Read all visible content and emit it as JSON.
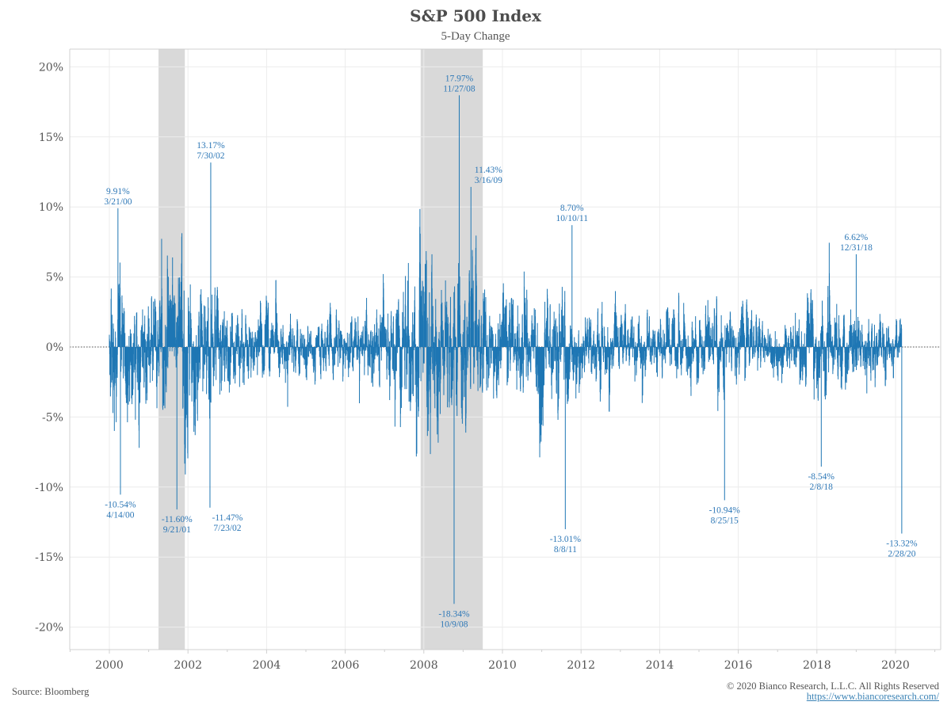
{
  "header": {
    "title": "S&P 500 Index",
    "subtitle": "5-Day Change"
  },
  "footer": {
    "source": "Source: Bloomberg",
    "copyright": "© 2020 Bianco Research, L.L.C. All Rights Reserved",
    "website": "https://www.biancoresearch.com/"
  },
  "colors": {
    "series": "#1f77b4",
    "annotation": "#2e78b7",
    "recession_band": "#d9d9d9",
    "grid": "#ececec",
    "axis": "#d0d0d0",
    "zero_line": "#555555"
  },
  "chart_data": {
    "type": "bar",
    "title": "S&P 500 Index",
    "subtitle": "5-Day Change",
    "xlabel": "",
    "ylabel": "",
    "xlim": [
      1999,
      2021.2
    ],
    "ylim": [
      -21.6,
      21.4
    ],
    "grid": true,
    "legend": "none",
    "x_ticks": [
      2000,
      2002,
      2004,
      2006,
      2008,
      2010,
      2012,
      2014,
      2016,
      2018,
      2020
    ],
    "x_tick_labels": [
      "2000",
      "2002",
      "2004",
      "2006",
      "2008",
      "2010",
      "2012",
      "2014",
      "2016",
      "2018",
      "2020"
    ],
    "y_ticks": [
      20,
      15,
      10,
      5,
      0,
      -5,
      -10,
      -15,
      -20
    ],
    "y_tick_labels": [
      "20%",
      "15%",
      "10%",
      "5%",
      "0%",
      "-5%",
      "-10%",
      "-15%",
      "-20%"
    ],
    "series_range": [
      2000.0,
      2020.16
    ],
    "shaded_regions": [
      {
        "label": "recession",
        "start": 2001.25,
        "end": 2001.92
      },
      {
        "label": "recession",
        "start": 2007.92,
        "end": 2009.5
      }
    ],
    "typical_amplitude_pct": [
      {
        "year": 2000,
        "value": 3.2
      },
      {
        "year": 2001,
        "value": 3.0
      },
      {
        "year": 2002,
        "value": 3.6
      },
      {
        "year": 2003,
        "value": 2.2
      },
      {
        "year": 2004,
        "value": 1.5
      },
      {
        "year": 2005,
        "value": 1.3
      },
      {
        "year": 2006,
        "value": 1.3
      },
      {
        "year": 2007,
        "value": 2.0
      },
      {
        "year": 2008,
        "value": 4.5
      },
      {
        "year": 2009,
        "value": 3.0
      },
      {
        "year": 2010,
        "value": 2.2
      },
      {
        "year": 2011,
        "value": 2.6
      },
      {
        "year": 2012,
        "value": 1.6
      },
      {
        "year": 2013,
        "value": 1.3
      },
      {
        "year": 2014,
        "value": 1.4
      },
      {
        "year": 2015,
        "value": 1.6
      },
      {
        "year": 2016,
        "value": 1.6
      },
      {
        "year": 2017,
        "value": 0.8
      },
      {
        "year": 2018,
        "value": 2.2
      },
      {
        "year": 2019,
        "value": 1.6
      },
      {
        "year": 2020,
        "value": 1.2
      }
    ],
    "annotations": [
      {
        "value": 9.91,
        "label": "9.91%",
        "date": "3/21/00",
        "x": 2000.22,
        "position": "above"
      },
      {
        "value": -10.54,
        "label": "-10.54%",
        "date": "4/14/00",
        "x": 2000.28,
        "position": "below"
      },
      {
        "value": -11.6,
        "label": "-11.60%",
        "date": "9/21/01",
        "x": 2001.72,
        "position": "below"
      },
      {
        "value": 13.17,
        "label": "13.17%",
        "date": "7/30/02",
        "x": 2002.58,
        "position": "above"
      },
      {
        "value": -11.47,
        "label": "-11.47%",
        "date": "7/23/02",
        "x": 2002.56,
        "position": "below-right"
      },
      {
        "value": 17.97,
        "label": "17.97%",
        "date": "11/27/08",
        "x": 2008.9,
        "position": "above"
      },
      {
        "value": -18.34,
        "label": "-18.34%",
        "date": "10/9/08",
        "x": 2008.77,
        "position": "below"
      },
      {
        "value": 11.43,
        "label": "11.43%",
        "date": "3/16/09",
        "x": 2009.2,
        "position": "above-right"
      },
      {
        "value": 8.7,
        "label": "8.70%",
        "date": "10/10/11",
        "x": 2011.77,
        "position": "above"
      },
      {
        "value": -13.01,
        "label": "-13.01%",
        "date": "8/8/11",
        "x": 2011.6,
        "position": "below"
      },
      {
        "value": -10.94,
        "label": "-10.94%",
        "date": "8/25/15",
        "x": 2015.65,
        "position": "below"
      },
      {
        "value": -8.54,
        "label": "-8.54%",
        "date": "2/8/18",
        "x": 2018.11,
        "position": "below"
      },
      {
        "value": 6.62,
        "label": "6.62%",
        "date": "12/31/18",
        "x": 2019.0,
        "position": "above"
      },
      {
        "value": -13.32,
        "label": "-13.32%",
        "date": "2/28/20",
        "x": 2020.16,
        "position": "below"
      }
    ]
  }
}
